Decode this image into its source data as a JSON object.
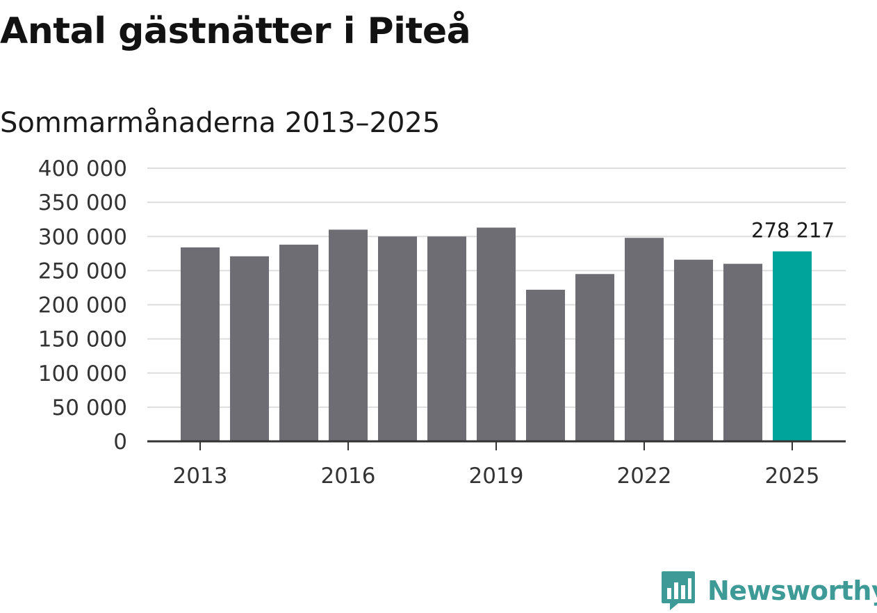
{
  "chart_data": {
    "type": "bar",
    "title": "Antal gästnätter i Piteå",
    "subtitle": "Sommarmånaderna 2013–2025",
    "categories": [
      "2013",
      "2014",
      "2015",
      "2016",
      "2017",
      "2018",
      "2019",
      "2020",
      "2021",
      "2022",
      "2023",
      "2024",
      "2025"
    ],
    "values": [
      284000,
      271000,
      288000,
      310000,
      300000,
      300000,
      313000,
      222000,
      245000,
      298000,
      266000,
      260000,
      278217
    ],
    "x_tick_labels": [
      "2013",
      "2016",
      "2019",
      "2022",
      "2025"
    ],
    "y_tick_labels": [
      "0",
      "50 000",
      "100 000",
      "150 000",
      "200 000",
      "250 000",
      "300 000",
      "350 000",
      "400 000"
    ],
    "y_ticks": [
      0,
      50000,
      100000,
      150000,
      200000,
      250000,
      300000,
      350000,
      400000
    ],
    "ylim": [
      0,
      400000
    ],
    "grid": true,
    "xlabel": "",
    "ylabel": "",
    "annotation": {
      "category": "2025",
      "label": "278 217"
    },
    "colors": {
      "bar": "#6e6d73",
      "highlight": "#00a49a",
      "grid": "#dddddd",
      "axis": "#333333"
    }
  },
  "brand": {
    "name": "Newsworthy",
    "logo_icon": "bar-chart-badge-icon",
    "color": "#3d9a96"
  }
}
